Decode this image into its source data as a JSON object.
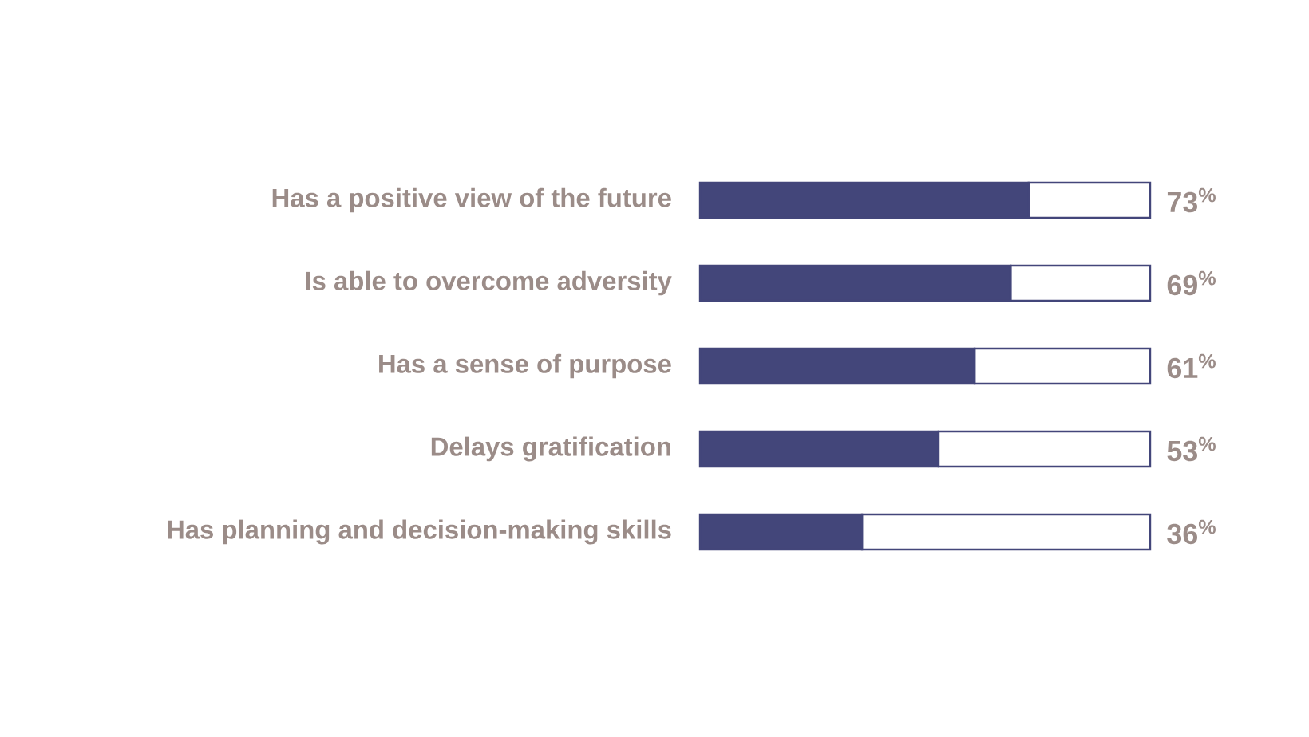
{
  "chart_data": {
    "type": "bar",
    "orientation": "horizontal",
    "stacked": true,
    "categories": [
      "Has a positive view of the future",
      "Is able to overcome adversity",
      "Has a sense of purpose",
      "Delays gratification",
      "Has planning and decision-making skills"
    ],
    "series": [
      {
        "color": "#43467a",
        "values": [
          73,
          69,
          61,
          53,
          36
        ],
        "value_labels": [
          "73$^{%}$",
          "69$^{%}$",
          "61$^{%}$",
          "53$^{%}$",
          "36$^{%}$"
        ]
      },
      {
        "color": "#ffffff",
        "values": [
          27,
          31,
          39,
          47,
          64
        ]
      }
    ],
    "xlim": [
      0,
      100
    ],
    "tick_labels": "y"
  }
}
